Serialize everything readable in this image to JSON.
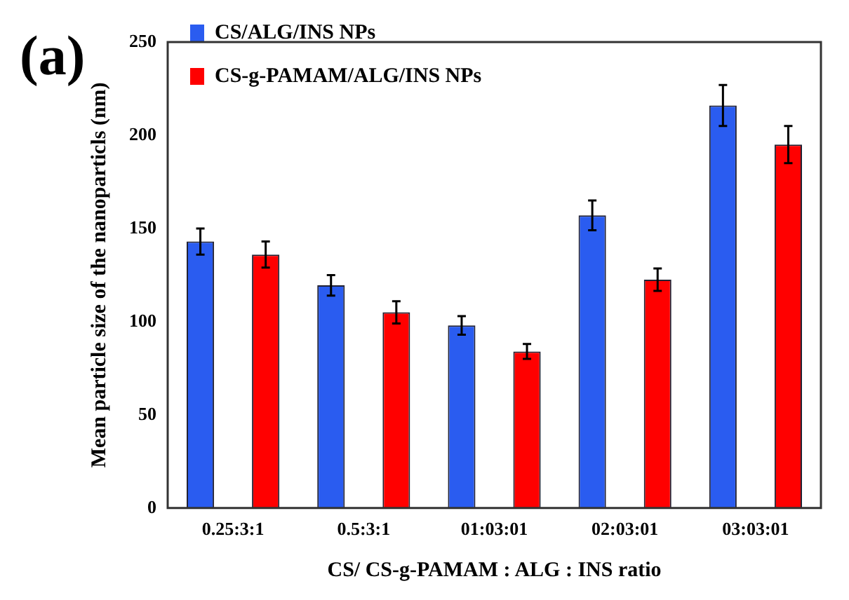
{
  "chart_data": {
    "type": "bar",
    "annotations": [
      "(a)"
    ],
    "xlabel": "CS/ CS-g-PAMAM : ALG : INS ratio",
    "ylabel": "Mean particle size of the nanoparticls (nm)",
    "categories": [
      "0.25:3:1",
      "0.5:3:1",
      "01:03:01",
      "02:03:01",
      "03:03:01"
    ],
    "series": [
      {
        "name": "CS/ALG/INS NPs",
        "color": "#2a5cf0",
        "values": [
          143,
          119.5,
          98,
          157,
          216
        ],
        "errors": [
          7,
          5.5,
          5,
          8,
          11
        ]
      },
      {
        "name": "CS-g-PAMAM/ALG/INS NPs",
        "color": "#ff0000",
        "values": [
          136,
          105,
          84,
          122.5,
          195
        ],
        "errors": [
          7,
          6,
          4,
          6,
          10
        ]
      }
    ],
    "ylim": [
      0,
      250
    ],
    "yticks": [
      0,
      50,
      100,
      150,
      200,
      250
    ],
    "grid": false,
    "legend": "top left"
  }
}
